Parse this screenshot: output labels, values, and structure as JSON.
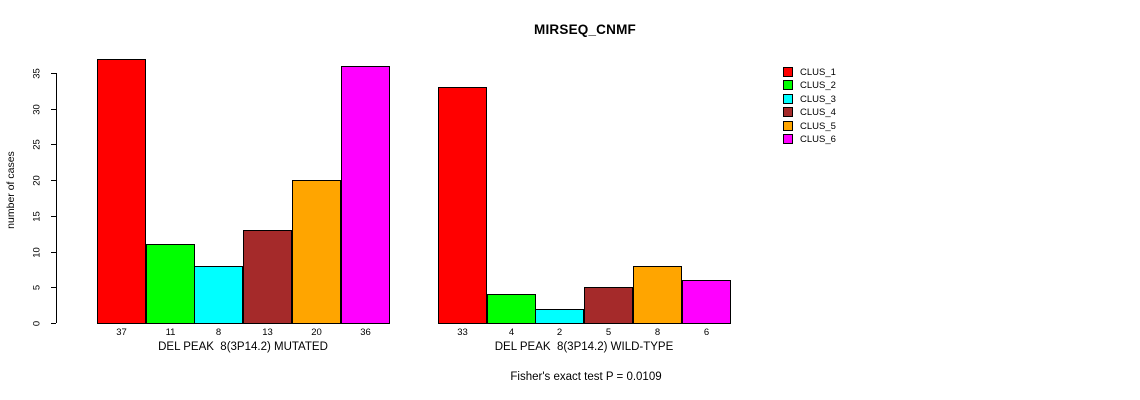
{
  "chart_data": {
    "type": "bar",
    "title": "MIRSEQ_CNMF",
    "ylabel": "number of cases",
    "xlabel": "",
    "ylim": [
      0,
      35
    ],
    "yticks": [
      0,
      5,
      10,
      15,
      20,
      25,
      30,
      35
    ],
    "grid": false,
    "legend_position": "right",
    "series": [
      {
        "name": "CLUS_1",
        "color": "#FF0000"
      },
      {
        "name": "CLUS_2",
        "color": "#00FF00"
      },
      {
        "name": "CLUS_3",
        "color": "#00FFFF"
      },
      {
        "name": "CLUS_4",
        "color": "#A52A2A"
      },
      {
        "name": "CLUS_5",
        "color": "#FFA500"
      },
      {
        "name": "CLUS_6",
        "color": "#FF00FF"
      }
    ],
    "groups": [
      {
        "label": "DEL PEAK  8(3P14.2) MUTATED",
        "values": [
          37,
          11,
          8,
          13,
          20,
          36
        ]
      },
      {
        "label": "DEL PEAK  8(3P14.2) WILD-TYPE",
        "values": [
          33,
          4,
          2,
          5,
          8,
          6
        ]
      }
    ],
    "annotation": "Fisher's exact test P = 0.0109",
    "bar_border_color": "#000000",
    "background_color": "#FFFFFF"
  }
}
